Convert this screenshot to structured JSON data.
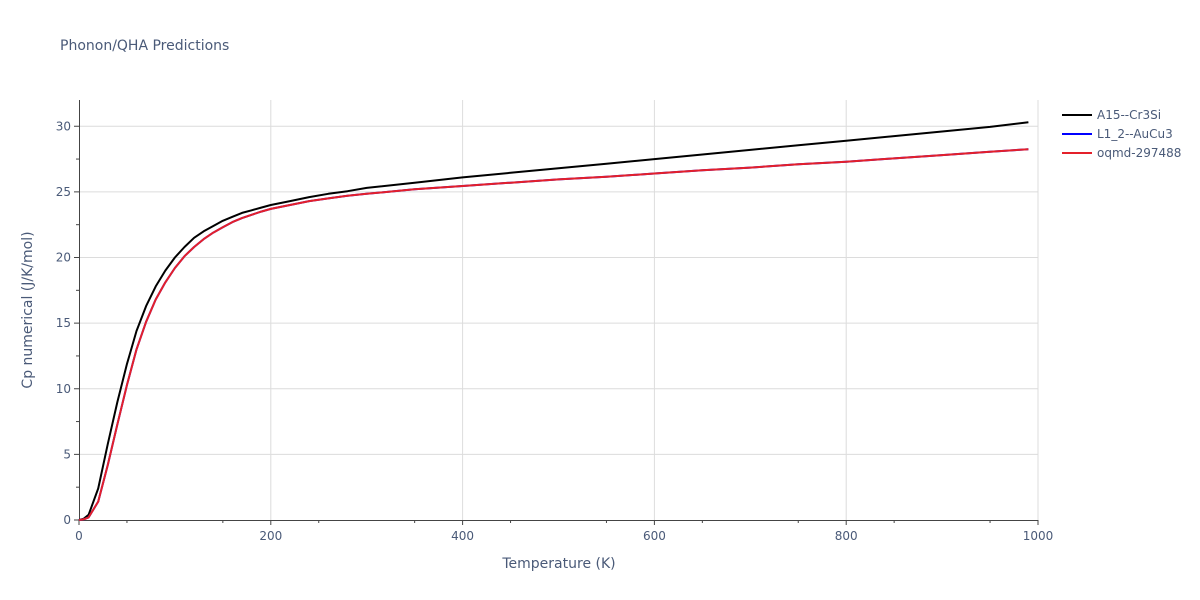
{
  "chart_data": {
    "type": "line",
    "title": "Phonon/QHA Predictions",
    "xlabel": "Temperature (K)",
    "ylabel": "Cp numerical (J/K/mol)",
    "xlim": [
      0,
      1000
    ],
    "ylim": [
      0,
      32
    ],
    "xticks": [
      0,
      200,
      400,
      600,
      800,
      1000
    ],
    "yticks": [
      0,
      5,
      10,
      15,
      20,
      25,
      30
    ],
    "grid": true,
    "legend_position": "top-right",
    "series": [
      {
        "name": "A15--Cr3Si",
        "color": "#000000",
        "x": [
          0,
          5,
          10,
          20,
          30,
          40,
          50,
          60,
          70,
          80,
          90,
          100,
          110,
          120,
          130,
          140,
          150,
          160,
          170,
          180,
          190,
          200,
          220,
          240,
          260,
          280,
          300,
          350,
          400,
          450,
          500,
          550,
          600,
          650,
          700,
          750,
          800,
          850,
          900,
          950,
          990
        ],
        "y": [
          0,
          0.1,
          0.4,
          2.4,
          5.8,
          9.0,
          11.9,
          14.4,
          16.3,
          17.8,
          19.0,
          20.0,
          20.8,
          21.5,
          22.0,
          22.4,
          22.8,
          23.1,
          23.4,
          23.6,
          23.8,
          24.0,
          24.3,
          24.6,
          24.85,
          25.05,
          25.3,
          25.7,
          26.1,
          26.45,
          26.8,
          27.15,
          27.5,
          27.85,
          28.2,
          28.55,
          28.9,
          29.25,
          29.6,
          29.95,
          30.3
        ]
      },
      {
        "name": "L1_2--AuCu3",
        "color": "#0000ff",
        "x": [
          0,
          5,
          10,
          20,
          30,
          40,
          50,
          60,
          70,
          80,
          90,
          100,
          110,
          120,
          130,
          140,
          150,
          160,
          170,
          180,
          190,
          200,
          220,
          240,
          260,
          280,
          300,
          350,
          400,
          450,
          500,
          550,
          600,
          650,
          700,
          750,
          800,
          850,
          900,
          950,
          990
        ],
        "y": [
          0,
          0.05,
          0.2,
          1.4,
          4.2,
          7.3,
          10.3,
          13.0,
          15.1,
          16.8,
          18.1,
          19.2,
          20.1,
          20.8,
          21.4,
          21.9,
          22.3,
          22.7,
          23.0,
          23.25,
          23.5,
          23.7,
          24.0,
          24.3,
          24.5,
          24.7,
          24.85,
          25.2,
          25.45,
          25.7,
          25.95,
          26.15,
          26.4,
          26.65,
          26.85,
          27.1,
          27.3,
          27.55,
          27.8,
          28.05,
          28.25
        ]
      },
      {
        "name": "oqmd-297488",
        "color": "#e4202a",
        "x": [
          0,
          5,
          10,
          20,
          30,
          40,
          50,
          60,
          70,
          80,
          90,
          100,
          110,
          120,
          130,
          140,
          150,
          160,
          170,
          180,
          190,
          200,
          220,
          240,
          260,
          280,
          300,
          350,
          400,
          450,
          500,
          550,
          600,
          650,
          700,
          750,
          800,
          850,
          900,
          950,
          990
        ],
        "y": [
          0,
          0.05,
          0.2,
          1.4,
          4.2,
          7.3,
          10.3,
          13.0,
          15.1,
          16.8,
          18.1,
          19.2,
          20.1,
          20.8,
          21.4,
          21.9,
          22.3,
          22.7,
          23.0,
          23.25,
          23.5,
          23.7,
          24.0,
          24.3,
          24.5,
          24.7,
          24.85,
          25.2,
          25.45,
          25.7,
          25.95,
          26.15,
          26.4,
          26.65,
          26.85,
          27.1,
          27.3,
          27.55,
          27.8,
          28.05,
          28.25
        ]
      }
    ]
  }
}
